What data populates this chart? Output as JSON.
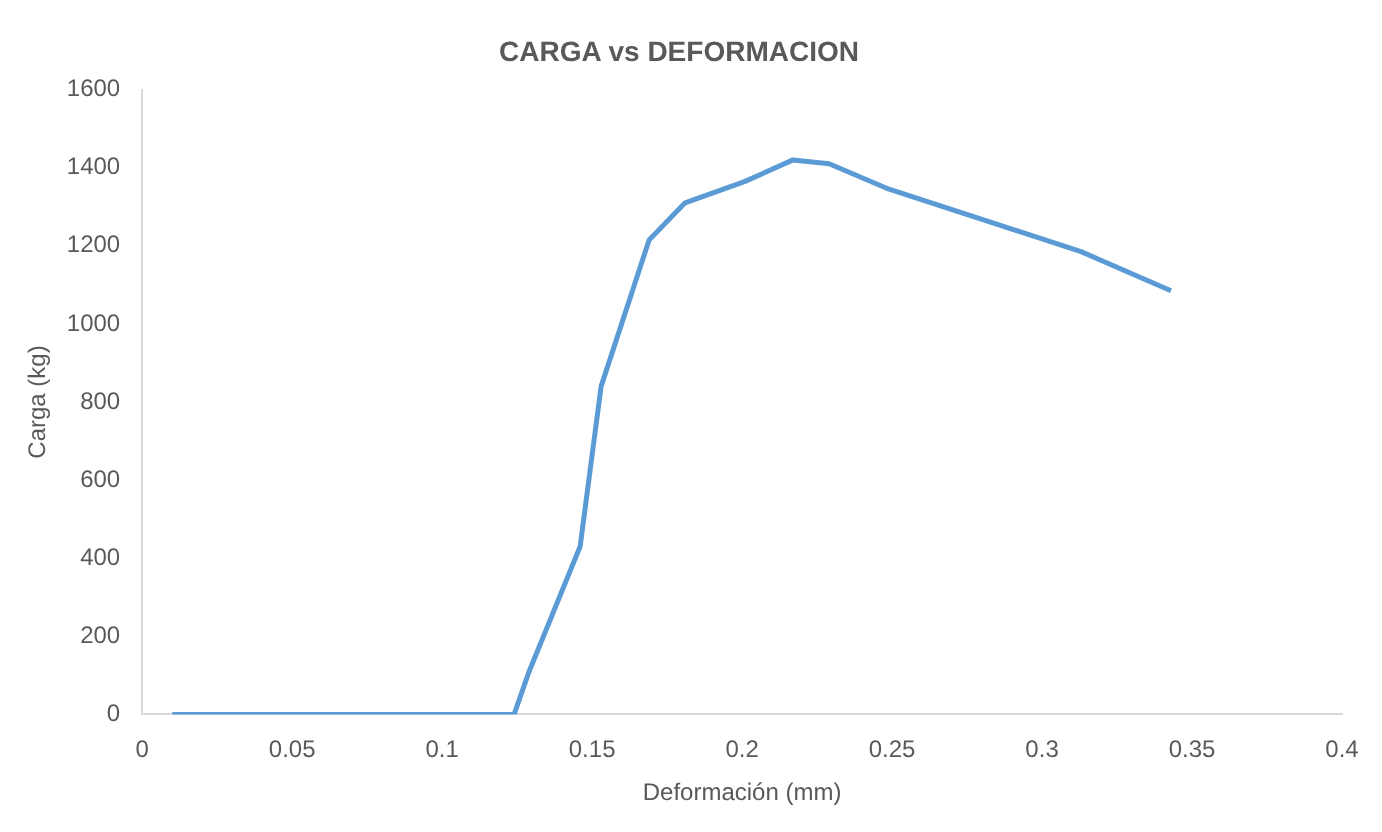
{
  "chart_data": {
    "type": "line",
    "title": "CARGA vs DEFORMACION",
    "xlabel": "Deformación (mm)",
    "ylabel": "Carga (kg)",
    "series": [
      {
        "color": "#5b9bd5",
        "x": [
          0.01,
          0.124,
          0.129,
          0.146,
          0.153,
          0.169,
          0.181,
          0.201,
          0.217,
          0.229,
          0.249,
          0.281,
          0.313,
          0.343
        ],
        "values": [
          0,
          0,
          110,
          430,
          840,
          1215,
          1310,
          1365,
          1420,
          1410,
          1345,
          1265,
          1185,
          1085
        ]
      }
    ],
    "xlim": [
      0,
      0.4
    ],
    "xticks": [
      0,
      0.05,
      0.1,
      0.15,
      0.2,
      0.25,
      0.3,
      0.35,
      0.4
    ],
    "ylim": [
      0,
      1600
    ],
    "yticks": [
      0,
      200,
      400,
      600,
      800,
      1000,
      1200,
      1400,
      1600
    ],
    "grid": false,
    "legend": false,
    "marker": "none",
    "line_style": "solid"
  }
}
